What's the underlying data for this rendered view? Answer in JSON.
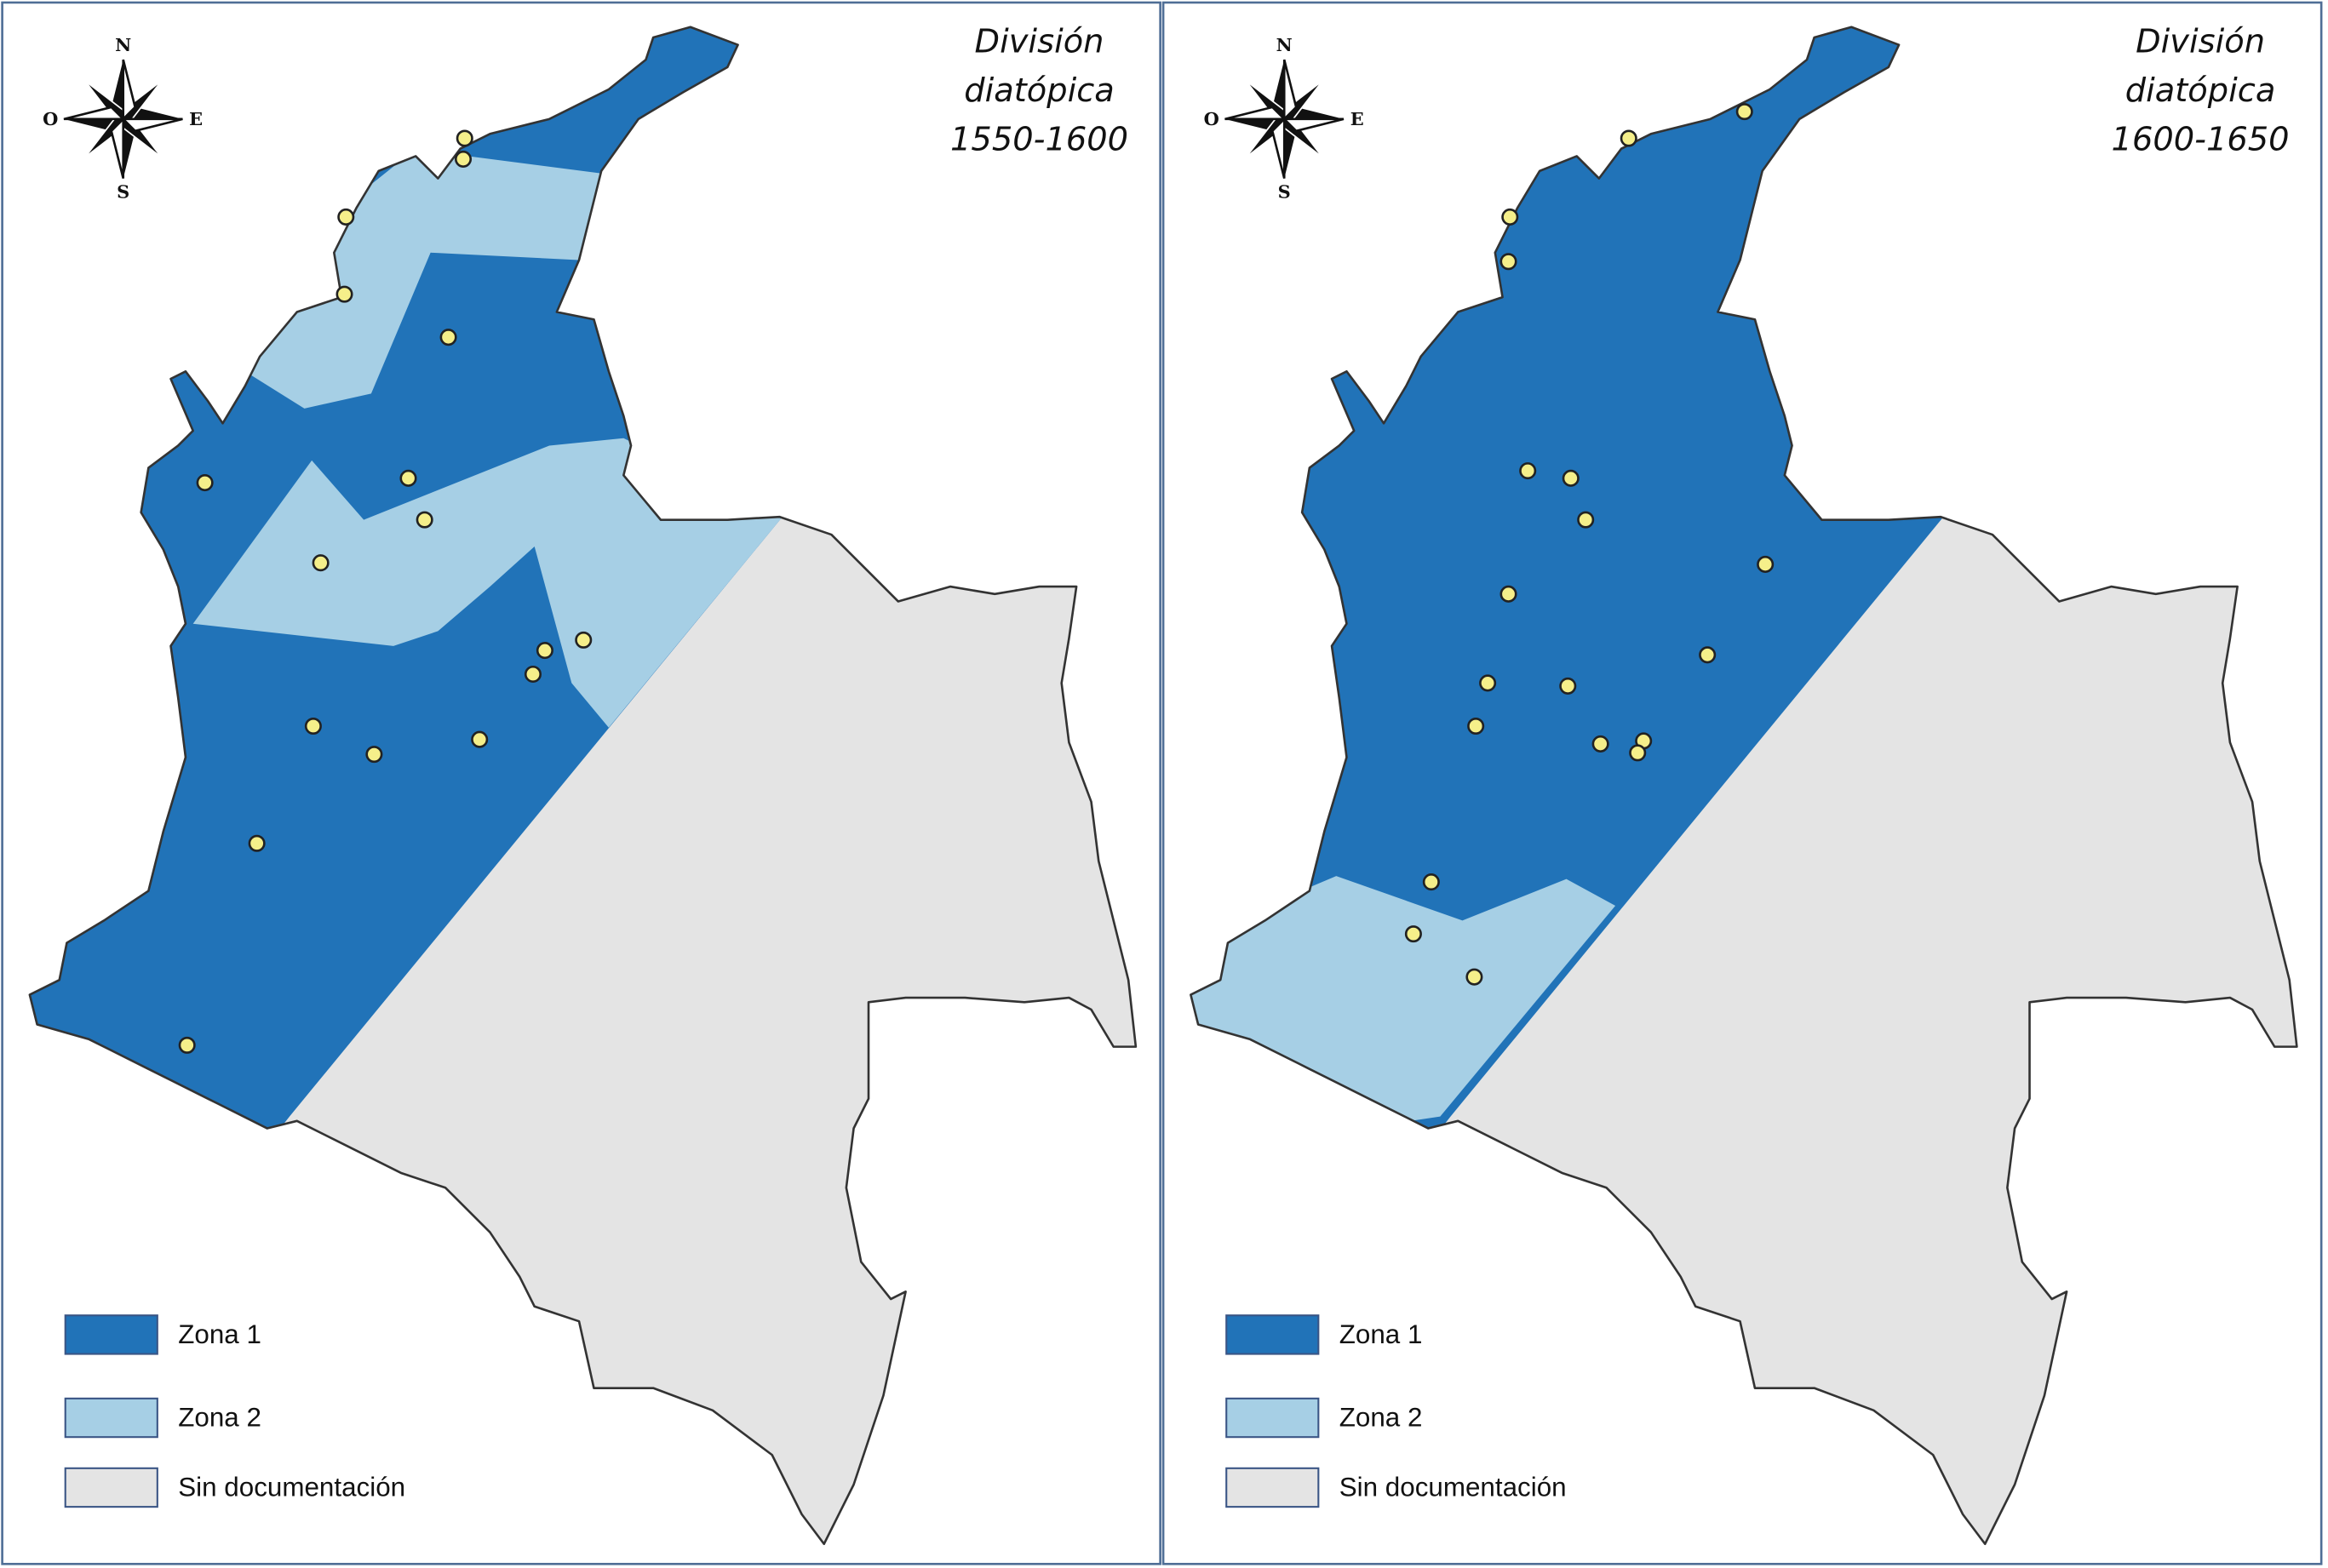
{
  "panels": [
    {
      "title": [
        "División",
        "diatópica",
        "1550-1600"
      ],
      "compass": {
        "north": "N",
        "south": "S",
        "east": "E",
        "west": "O"
      },
      "legend": [
        "Zona 1",
        "Zona 2",
        "Sin documentación"
      ]
    },
    {
      "title": [
        "División",
        "diatópica",
        "1600-1650"
      ],
      "compass": {
        "north": "N",
        "south": "S",
        "east": "E",
        "west": "O"
      },
      "legend": [
        "Zona 1",
        "Zona 2",
        "Sin documentación"
      ]
    }
  ]
}
